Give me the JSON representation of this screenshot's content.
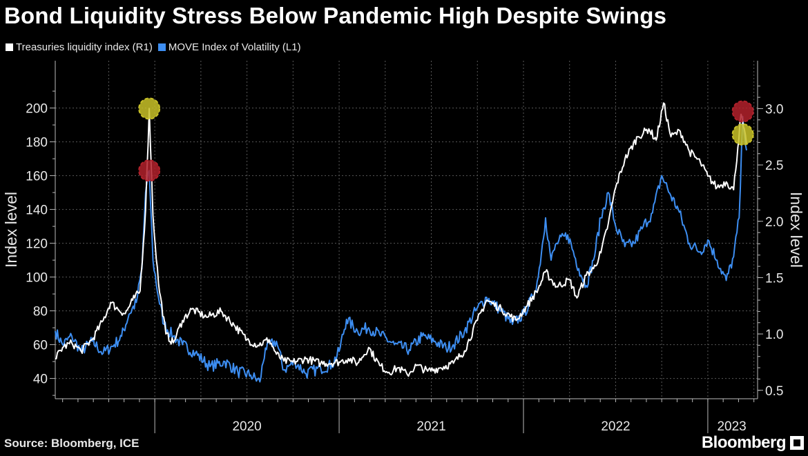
{
  "chart_data": {
    "type": "line",
    "title": "Bond Liquidity Stress Below Pandemic High Despite Swings",
    "source": "Source: Bloomberg, ICE",
    "brand": "Bloomberg",
    "left_axis": {
      "label": "Index level",
      "ylim": [
        28,
        228
      ],
      "ticks": [
        40,
        60,
        80,
        100,
        120,
        140,
        160,
        180,
        200
      ]
    },
    "right_axis": {
      "label": "Index level",
      "ylim": [
        0.425,
        3.425
      ],
      "ticks": [
        "0.5",
        "1.0",
        "1.5",
        "2.0",
        "2.5",
        "3.0"
      ]
    },
    "x_axis": {
      "range": [
        2019.46,
        2023.27
      ],
      "labels": [
        "2020",
        "2021",
        "2022",
        "2023"
      ]
    },
    "grid": true,
    "legend_position": "top-left",
    "series": [
      {
        "name": "Treasuries liquidity index (R1)",
        "axis": "right",
        "color": "#ffffff",
        "points": [
          [
            2019.46,
            0.78
          ],
          [
            2019.5,
            0.88
          ],
          [
            2019.55,
            0.92
          ],
          [
            2019.6,
            0.85
          ],
          [
            2019.66,
            0.95
          ],
          [
            2019.72,
            1.12
          ],
          [
            2019.76,
            1.28
          ],
          [
            2019.8,
            1.22
          ],
          [
            2019.84,
            1.18
          ],
          [
            2019.88,
            1.3
          ],
          [
            2019.92,
            1.38
          ],
          [
            2019.95,
            2.1
          ],
          [
            2019.97,
            3.0
          ],
          [
            2019.99,
            2.05
          ],
          [
            2020.02,
            1.45
          ],
          [
            2020.06,
            1.0
          ],
          [
            2020.1,
            0.92
          ],
          [
            2020.15,
            1.12
          ],
          [
            2020.2,
            1.22
          ],
          [
            2020.28,
            1.15
          ],
          [
            2020.36,
            1.2
          ],
          [
            2020.43,
            1.08
          ],
          [
            2020.5,
            0.95
          ],
          [
            2020.56,
            0.9
          ],
          [
            2020.62,
            0.95
          ],
          [
            2020.66,
            0.82
          ],
          [
            2020.7,
            0.76
          ],
          [
            2020.75,
            0.75
          ],
          [
            2020.82,
            0.78
          ],
          [
            2020.9,
            0.74
          ],
          [
            2021.0,
            0.75
          ],
          [
            2021.05,
            0.78
          ],
          [
            2021.1,
            0.74
          ],
          [
            2021.16,
            0.88
          ],
          [
            2021.22,
            0.72
          ],
          [
            2021.27,
            0.66
          ],
          [
            2021.32,
            0.7
          ],
          [
            2021.37,
            0.64
          ],
          [
            2021.42,
            0.72
          ],
          [
            2021.48,
            0.67
          ],
          [
            2021.55,
            0.7
          ],
          [
            2021.62,
            0.74
          ],
          [
            2021.68,
            0.85
          ],
          [
            2021.75,
            1.12
          ],
          [
            2021.8,
            1.3
          ],
          [
            2021.88,
            1.22
          ],
          [
            2021.96,
            1.12
          ],
          [
            2022.02,
            1.25
          ],
          [
            2022.08,
            1.4
          ],
          [
            2022.12,
            1.55
          ],
          [
            2022.18,
            1.42
          ],
          [
            2022.25,
            1.48
          ],
          [
            2022.29,
            1.32
          ],
          [
            2022.34,
            1.52
          ],
          [
            2022.38,
            1.58
          ],
          [
            2022.42,
            1.72
          ],
          [
            2022.46,
            1.98
          ],
          [
            2022.5,
            2.3
          ],
          [
            2022.55,
            2.55
          ],
          [
            2022.62,
            2.75
          ],
          [
            2022.68,
            2.82
          ],
          [
            2022.72,
            2.72
          ],
          [
            2022.76,
            3.05
          ],
          [
            2022.8,
            2.75
          ],
          [
            2022.85,
            2.8
          ],
          [
            2022.9,
            2.62
          ],
          [
            2022.96,
            2.52
          ],
          [
            2023.0,
            2.4
          ],
          [
            2023.05,
            2.3
          ],
          [
            2023.1,
            2.35
          ],
          [
            2023.14,
            2.28
          ],
          [
            2023.18,
            2.95
          ],
          [
            2023.21,
            2.68
          ]
        ]
      },
      {
        "name": "MOVE Index of Volatility (L1)",
        "axis": "left",
        "color": "#3d8ef2",
        "points": [
          [
            2019.46,
            68
          ],
          [
            2019.5,
            60
          ],
          [
            2019.55,
            65
          ],
          [
            2019.6,
            56
          ],
          [
            2019.66,
            62
          ],
          [
            2019.72,
            55
          ],
          [
            2019.78,
            60
          ],
          [
            2019.82,
            65
          ],
          [
            2019.86,
            78
          ],
          [
            2019.9,
            85
          ],
          [
            2019.93,
            105
          ],
          [
            2019.95,
            150
          ],
          [
            2019.97,
            163
          ],
          [
            2019.99,
            110
          ],
          [
            2020.02,
            88
          ],
          [
            2020.05,
            72
          ],
          [
            2020.1,
            65
          ],
          [
            2020.15,
            60
          ],
          [
            2020.22,
            55
          ],
          [
            2020.3,
            47
          ],
          [
            2020.38,
            50
          ],
          [
            2020.45,
            44
          ],
          [
            2020.52,
            42
          ],
          [
            2020.57,
            38
          ],
          [
            2020.6,
            58
          ],
          [
            2020.66,
            62
          ],
          [
            2020.7,
            45
          ],
          [
            2020.76,
            50
          ],
          [
            2020.82,
            43
          ],
          [
            2020.9,
            46
          ],
          [
            2020.96,
            48
          ],
          [
            2021.0,
            56
          ],
          [
            2021.04,
            75
          ],
          [
            2021.1,
            68
          ],
          [
            2021.16,
            70
          ],
          [
            2021.22,
            66
          ],
          [
            2021.3,
            60
          ],
          [
            2021.38,
            57
          ],
          [
            2021.45,
            65
          ],
          [
            2021.52,
            62
          ],
          [
            2021.58,
            58
          ],
          [
            2021.62,
            60
          ],
          [
            2021.68,
            68
          ],
          [
            2021.74,
            80
          ],
          [
            2021.8,
            88
          ],
          [
            2021.88,
            80
          ],
          [
            2021.94,
            72
          ],
          [
            2022.0,
            78
          ],
          [
            2022.05,
            88
          ],
          [
            2022.08,
            100
          ],
          [
            2022.12,
            135
          ],
          [
            2022.15,
            110
          ],
          [
            2022.18,
            120
          ],
          [
            2022.24,
            125
          ],
          [
            2022.3,
            105
          ],
          [
            2022.34,
            95
          ],
          [
            2022.38,
            110
          ],
          [
            2022.42,
            135
          ],
          [
            2022.46,
            150
          ],
          [
            2022.5,
            130
          ],
          [
            2022.55,
            118
          ],
          [
            2022.6,
            120
          ],
          [
            2022.65,
            130
          ],
          [
            2022.7,
            138
          ],
          [
            2022.75,
            160
          ],
          [
            2022.8,
            148
          ],
          [
            2022.84,
            140
          ],
          [
            2022.9,
            120
          ],
          [
            2022.96,
            115
          ],
          [
            2023.0,
            122
          ],
          [
            2023.05,
            110
          ],
          [
            2023.1,
            98
          ],
          [
            2023.14,
            112
          ],
          [
            2023.17,
            135
          ],
          [
            2023.19,
            195
          ],
          [
            2023.21,
            175
          ]
        ]
      }
    ],
    "annotations": [
      {
        "type": "circle",
        "color": "yellow",
        "series": "Treasuries liquidity index (R1)",
        "x": 2019.97,
        "y": 3.0,
        "axis": "right"
      },
      {
        "type": "circle",
        "color": "red",
        "series": "MOVE Index of Volatility (L1)",
        "x": 2019.97,
        "y": 163,
        "axis": "left"
      },
      {
        "type": "circle",
        "color": "red",
        "series": "MOVE Index of Volatility (L1)",
        "x": 2023.19,
        "y": 198,
        "axis": "left"
      },
      {
        "type": "circle",
        "color": "yellow",
        "series": "Treasuries liquidity index (R1)",
        "x": 2023.19,
        "y": 2.77,
        "axis": "right"
      }
    ]
  },
  "colors": {
    "background": "#000000",
    "white_series": "#ffffff",
    "blue_series": "#3d8ef2",
    "grid": "#5a5a5a",
    "annotation_yellow": "#c9c228",
    "annotation_red": "#b3212b"
  }
}
